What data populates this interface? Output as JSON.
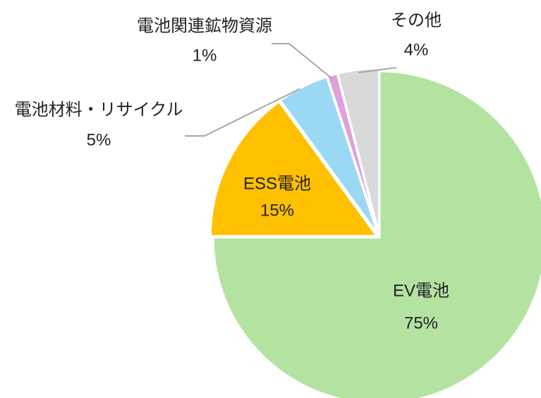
{
  "chart_data": {
    "type": "pie",
    "categories": [
      "EV電池",
      "ESS電池",
      "電池材料・リサイクル",
      "電池関連鉱物資源",
      "その他"
    ],
    "values": [
      75,
      15,
      5,
      1,
      4
    ],
    "value_labels": [
      "75%",
      "15%",
      "5%",
      "1%",
      "4%"
    ],
    "colors": [
      "#b4e3a1",
      "#ffc000",
      "#9bd8f4",
      "#dfa0dc",
      "#d9d9d9"
    ]
  }
}
